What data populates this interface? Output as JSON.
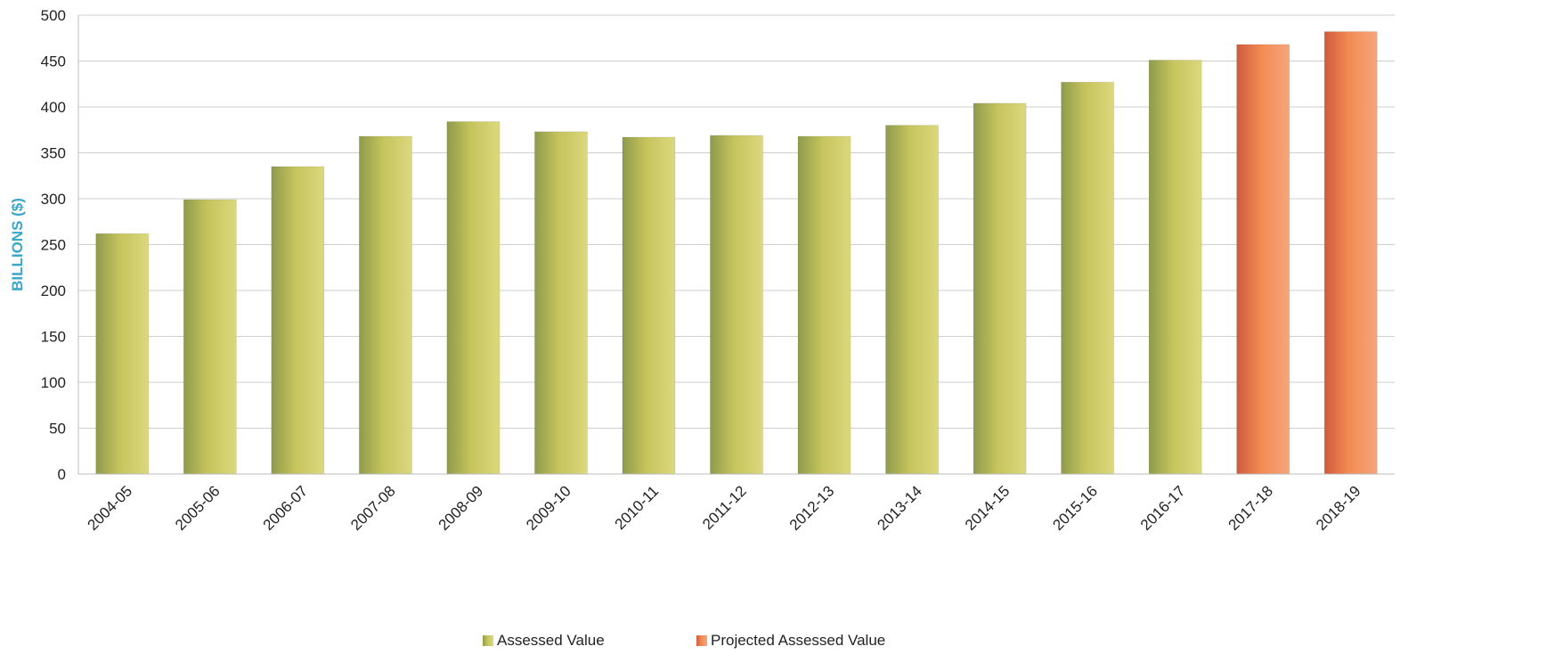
{
  "chart_data": {
    "type": "bar",
    "categories": [
      "2004-05",
      "2005-06",
      "2006-07",
      "2007-08",
      "2008-09",
      "2009-10",
      "2010-11",
      "2011-12",
      "2012-13",
      "2013-14",
      "2014-15",
      "2015-16",
      "2016-17",
      "2017-18",
      "2018-19"
    ],
    "series": [
      {
        "name": "Assessed Value",
        "values": [
          262,
          299,
          335,
          368,
          384,
          373,
          367,
          369,
          368,
          380,
          404,
          427,
          451,
          null,
          null
        ]
      },
      {
        "name": "Projected Assessed Value",
        "values": [
          null,
          null,
          null,
          null,
          null,
          null,
          null,
          null,
          null,
          null,
          null,
          null,
          null,
          468,
          482
        ]
      }
    ],
    "ylabel": "BILLIONS ($)",
    "ylim": [
      0,
      500
    ],
    "yticks": [
      0,
      50,
      100,
      150,
      200,
      250,
      300,
      350,
      400,
      450,
      500
    ],
    "grid": true,
    "legend_position": "bottom-center",
    "colors": {
      "Assessed Value": "#c9c35a",
      "Projected Assessed Value": "#f08a52",
      "ylabel": "#3aa6c8",
      "grid": "#cfcfcf"
    }
  }
}
